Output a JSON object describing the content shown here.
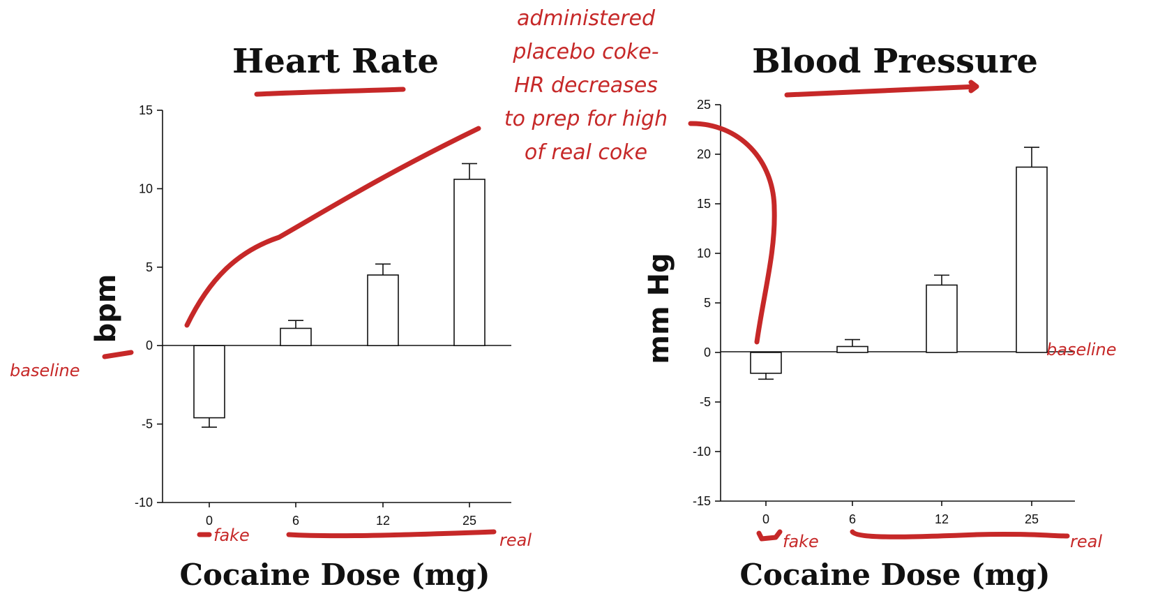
{
  "chart_data": [
    {
      "type": "bar",
      "title": "Heart Rate",
      "xlabel": "Cocaine Dose (mg)",
      "ylabel": "bpm",
      "categories": [
        "0",
        "6",
        "12",
        "25"
      ],
      "values": [
        -4.6,
        1.1,
        4.5,
        10.6
      ],
      "errors": [
        0.6,
        0.5,
        0.7,
        1.0
      ],
      "ylim": [
        -10,
        15
      ],
      "yticks": [
        "15",
        "10",
        "5",
        "0",
        "-5",
        "-10"
      ],
      "grid": false
    },
    {
      "type": "bar",
      "title": "Blood Pressure",
      "xlabel": "Cocaine Dose (mg)",
      "ylabel": "mm Hg",
      "categories": [
        "0",
        "6",
        "12",
        "25"
      ],
      "values": [
        -2.1,
        0.6,
        6.8,
        18.7
      ],
      "errors": [
        0.6,
        0.7,
        1.0,
        2.0
      ],
      "ylim": [
        -15,
        25
      ],
      "yticks": [
        "25",
        "20",
        "15",
        "10",
        "5",
        "0",
        "-5",
        "-10",
        "-15"
      ],
      "grid": false
    }
  ],
  "annotations": {
    "note_lines": [
      "administered",
      "placebo coke-",
      "HR decreases",
      "to prep for high",
      "of real coke"
    ],
    "left_baseline": "baseline",
    "right_baseline": "baseline",
    "left_fake": "fake",
    "left_real": "real",
    "right_fake": "fake",
    "right_real": "real"
  },
  "colors": {
    "ink": "#c62828",
    "bar_fill": "#ffffff",
    "axis": "#111111"
  }
}
